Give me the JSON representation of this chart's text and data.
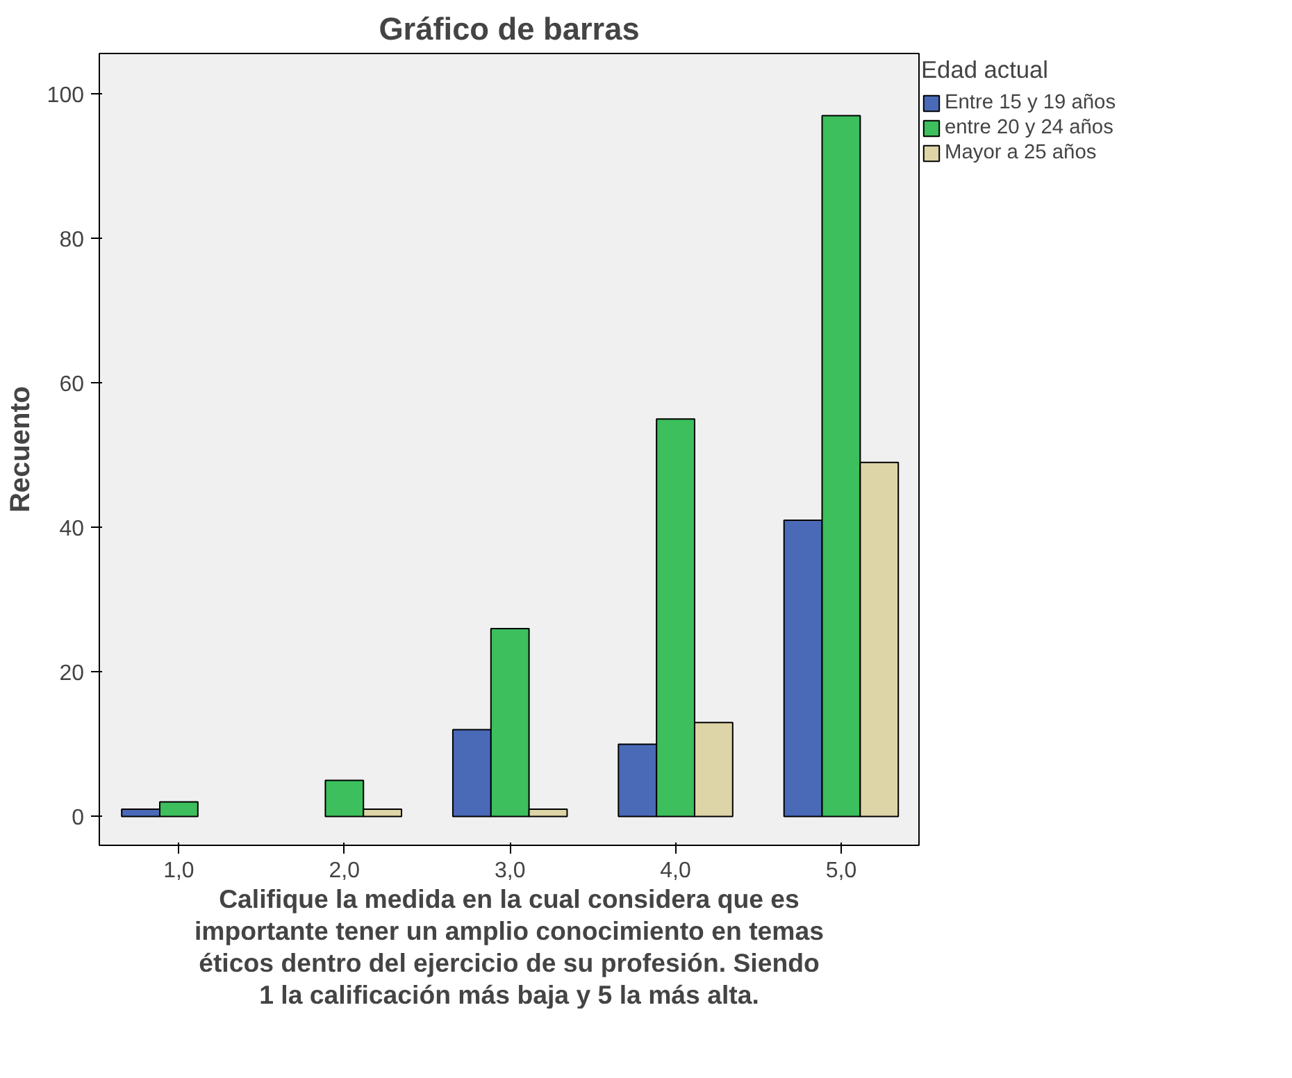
{
  "chart_data": {
    "type": "bar",
    "title": "Gráfico de barras",
    "xlabel": "Califique la medida en la cual considera que es importante tener un amplio conocimiento en temas éticos dentro del ejercicio de su profesión. Siendo 1 la calificación más baja y 5 la más alta.",
    "ylabel": "Recuento",
    "legend_title": "Edad actual",
    "categories": [
      "1,0",
      "2,0",
      "3,0",
      "4,0",
      "5,0"
    ],
    "series": [
      {
        "name": "Entre 15 y 19 años",
        "color": "#4a6ab8",
        "values": [
          1,
          null,
          12,
          10,
          41
        ]
      },
      {
        "name": "entre 20 y 24 años",
        "color": "#3cbf5c",
        "values": [
          2,
          5,
          26,
          55,
          97
        ]
      },
      {
        "name": "Mayor a 25 años",
        "color": "#ddd5a8",
        "values": [
          null,
          1,
          1,
          13,
          49
        ]
      }
    ],
    "ylim": [
      -4,
      105.6
    ],
    "yticks": [
      0,
      20,
      40,
      60,
      80,
      100
    ],
    "grid": false,
    "legend": "top right"
  }
}
